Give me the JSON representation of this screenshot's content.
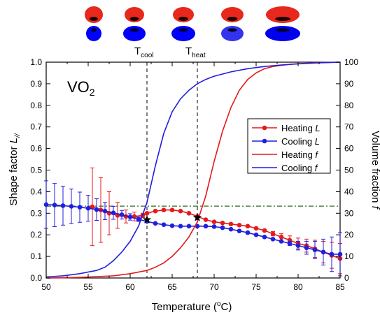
{
  "chart_data": {
    "type": "line",
    "annotation_material": "VO",
    "annotation_subscript": "2",
    "xlabel": "Temperature (",
    "xlabel_super": "o",
    "xlabel_tail": "C)",
    "ylabel_left": "Shape factor ",
    "ylabel_left_var": "L",
    "ylabel_left_sub": "//",
    "ylabel_right": "Volume fraction ",
    "ylabel_right_var": "f",
    "xlim": [
      50,
      85
    ],
    "ylim_left": [
      0.0,
      1.0
    ],
    "ylim_right": [
      0,
      100
    ],
    "x_ticks": [
      "50",
      "55",
      "60",
      "65",
      "70",
      "75",
      "80",
      "85"
    ],
    "y_left_ticks": [
      "0.0",
      "0.1",
      "0.2",
      "0.3",
      "0.4",
      "0.5",
      "0.6",
      "0.7",
      "0.8",
      "0.9",
      "1.0"
    ],
    "y_right_ticks": [
      "0",
      "10",
      "20",
      "30",
      "40",
      "50",
      "60",
      "70",
      "80",
      "90",
      "100"
    ],
    "marker_labels": {
      "cool": "T",
      "cool_sub": "cool",
      "cool_x": 62,
      "heat": "T",
      "heat_sub": "heat",
      "heat_x": 68
    },
    "reference_line_left": 0.333,
    "stars": [
      {
        "x": 62,
        "y": 0.27
      },
      {
        "x": 68,
        "y": 0.28
      }
    ],
    "legend_position": "center-right",
    "series": [
      {
        "name": "Heating L",
        "name_main": "Heating ",
        "name_var": "L",
        "axis": "left",
        "color": "#e41a1c",
        "marker": "circle",
        "x": [
          55.5,
          56.5,
          57.5,
          58.5,
          59.5,
          60.5,
          61.5,
          62.0,
          63.0,
          64.0,
          65.0,
          66.0,
          67.0,
          68.0,
          69.0,
          70.0,
          71.0,
          72.0,
          73.0,
          74.0,
          75.0,
          76.0,
          77.0,
          78.0,
          79.0,
          80.0,
          81.0,
          82.0,
          83.0,
          84.0,
          85.0
        ],
        "y": [
          0.33,
          0.315,
          0.3,
          0.29,
          0.285,
          0.285,
          0.29,
          0.3,
          0.31,
          0.315,
          0.315,
          0.31,
          0.3,
          0.285,
          0.27,
          0.26,
          0.255,
          0.25,
          0.245,
          0.24,
          0.23,
          0.22,
          0.205,
          0.19,
          0.175,
          0.16,
          0.15,
          0.135,
          0.12,
          0.105,
          0.09
        ],
        "errors": [
          0.18,
          0.15,
          0.1,
          0.06,
          0.03,
          0.02,
          0.01,
          0.005,
          0.005,
          0.005,
          0.005,
          0.005,
          0.005,
          0.005,
          0.005,
          0.005,
          0.005,
          0.005,
          0.005,
          0.005,
          0.005,
          0.005,
          0.01,
          0.015,
          0.02,
          0.025,
          0.03,
          0.04,
          0.05,
          0.06,
          0.07
        ]
      },
      {
        "name": "Cooling L",
        "name_main": "Cooling ",
        "name_var": "L",
        "axis": "left",
        "color": "#1f1fdd",
        "marker": "circle",
        "x": [
          50.0,
          51.0,
          52.0,
          53.0,
          54.0,
          55.0,
          56.0,
          57.0,
          58.0,
          59.0,
          60.0,
          61.0,
          62.0,
          63.0,
          64.0,
          65.0,
          66.0,
          67.0,
          68.0,
          69.0,
          70.0,
          71.0,
          72.0,
          73.0,
          74.0,
          75.0,
          76.0,
          77.0,
          78.0,
          79.0,
          80.0,
          81.0,
          82.0,
          83.0,
          84.0,
          85.0
        ],
        "y": [
          0.34,
          0.338,
          0.335,
          0.332,
          0.328,
          0.323,
          0.317,
          0.31,
          0.302,
          0.293,
          0.283,
          0.272,
          0.262,
          0.253,
          0.247,
          0.242,
          0.24,
          0.24,
          0.24,
          0.24,
          0.238,
          0.233,
          0.226,
          0.218,
          0.21,
          0.2,
          0.19,
          0.18,
          0.17,
          0.16,
          0.15,
          0.14,
          0.13,
          0.12,
          0.11,
          0.11
        ],
        "errors": [
          0.11,
          0.1,
          0.09,
          0.08,
          0.07,
          0.06,
          0.05,
          0.04,
          0.03,
          0.02,
          0.015,
          0.01,
          0.005,
          0.005,
          0.005,
          0.005,
          0.005,
          0.005,
          0.005,
          0.005,
          0.005,
          0.005,
          0.005,
          0.005,
          0.005,
          0.005,
          0.005,
          0.005,
          0.005,
          0.01,
          0.02,
          0.03,
          0.04,
          0.06,
          0.08,
          0.1
        ]
      },
      {
        "name": "Heating f",
        "name_main": "Heating ",
        "name_var": "f",
        "axis": "right",
        "color": "#e41a1c",
        "marker": "none",
        "x": [
          50,
          52,
          54,
          56,
          58,
          60,
          62,
          63,
          64,
          65,
          66,
          67,
          68,
          69,
          70,
          71,
          72,
          73,
          74,
          75,
          76,
          77,
          78,
          79,
          80,
          82,
          85
        ],
        "y": [
          0,
          0.1,
          0.3,
          0.6,
          1,
          2,
          3.5,
          5,
          7,
          10,
          14,
          19,
          26,
          38,
          54,
          68,
          79,
          87,
          92,
          95,
          97,
          98,
          98.5,
          99,
          99.3,
          99.7,
          100
        ]
      },
      {
        "name": "Cooling f",
        "name_main": "Cooling ",
        "name_var": "f",
        "axis": "right",
        "color": "#1f1fdd",
        "marker": "none",
        "x": [
          50,
          52,
          54,
          56,
          57,
          58,
          59,
          60,
          61,
          62,
          63,
          64,
          65,
          66,
          67,
          68,
          69,
          70,
          72,
          74,
          76,
          78,
          80,
          82,
          85
        ],
        "y": [
          0.5,
          1,
          2,
          3.5,
          5,
          8,
          12,
          17,
          24,
          35,
          52,
          67,
          77,
          83,
          87,
          90,
          92,
          93.5,
          95.5,
          97,
          98,
          98.7,
          99.2,
          99.6,
          100
        ]
      }
    ],
    "inset_shapes": [
      {
        "x": 134,
        "rx_red": 13,
        "ry_red": 12,
        "rx_blue": 11,
        "ry_blue": 11,
        "blue_color": "#0000ff"
      },
      {
        "x": 192,
        "rx_red": 14,
        "ry_red": 11,
        "rx_blue": 16,
        "ry_blue": 11,
        "blue_color": "#0000ff"
      },
      {
        "x": 262,
        "rx_red": 15,
        "ry_red": 11,
        "rx_blue": 17,
        "ry_blue": 11,
        "blue_color": "#0000ff"
      },
      {
        "x": 332,
        "rx_red": 16,
        "ry_red": 11,
        "rx_blue": 16,
        "ry_blue": 11,
        "blue_color": "#3333ee"
      },
      {
        "x": 404,
        "rx_red": 24,
        "ry_red": 12,
        "rx_blue": 25,
        "ry_blue": 11,
        "blue_color": "#0000ee"
      }
    ]
  }
}
